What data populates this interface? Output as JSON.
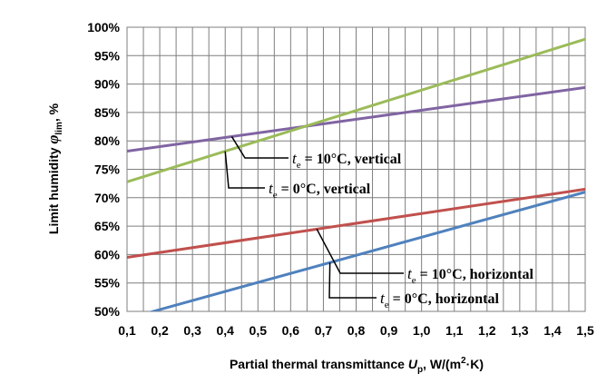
{
  "chart_data": {
    "type": "line",
    "xlabel": "Partial thermal transmittance U_p, W/(m²·K)",
    "xlabel_parts": {
      "prefix": "Partial thermal transmittance ",
      "symbol": "U",
      "symbol_sub": "p",
      "suffix_a": ", W/(m",
      "suffix_sup": "2",
      "suffix_b": "·K)"
    },
    "ylabel": "Limit humidity φ_lim, %",
    "ylabel_parts": {
      "prefix": "Limit humidity ",
      "symbol": "φ",
      "symbol_sub": "lim",
      "suffix": ", %"
    },
    "x_ticks": [
      "0,1",
      "0,2",
      "0,3",
      "0,4",
      "0,5",
      "0,6",
      "0,7",
      "0,8",
      "0,9",
      "1,0",
      "1,1",
      "1,2",
      "1,3",
      "1,4",
      "1,5"
    ],
    "y_ticks": [
      "50%",
      "55%",
      "60%",
      "65%",
      "70%",
      "75%",
      "80%",
      "85%",
      "90%",
      "95%",
      "100%"
    ],
    "xlim": [
      0.1,
      1.5
    ],
    "ylim": [
      50,
      100
    ],
    "grid": true,
    "legend": "none",
    "series": [
      {
        "name": "t_e = 10°C, vertical",
        "color": "#8064a2",
        "x": [
          0.1,
          1.5
        ],
        "y": [
          78.2,
          89.4
        ]
      },
      {
        "name": "t_e = 0°C, vertical",
        "color": "#9bbb59",
        "x": [
          0.1,
          1.5
        ],
        "y": [
          72.8,
          97.9
        ]
      },
      {
        "name": "t_e = 10°C, horizontal",
        "color": "#c0504d",
        "x": [
          0.1,
          1.5
        ],
        "y": [
          59.5,
          71.5
        ]
      },
      {
        "name": "t_e = 0°C, horizontal",
        "color": "#4f81bd",
        "x": [
          0.1,
          0.18,
          1.5
        ],
        "y": [
          48.5,
          50.0,
          71.0
        ]
      }
    ],
    "annotations": [
      {
        "var": "t",
        "sub": "e",
        "text": " = 10°C, vertical",
        "series": 0,
        "at_x": 0.42
      },
      {
        "var": "t",
        "sub": "e",
        "text": " = 0°C, vertical",
        "series": 1,
        "at_x": 0.4
      },
      {
        "var": "t",
        "sub": "e",
        "text": " = 10°C, horizontal",
        "series": 2,
        "at_x": 0.68
      },
      {
        "var": "t",
        "sub": "e",
        "text": " = 0°C, horizontal",
        "series": 3,
        "at_x": 0.72
      }
    ]
  }
}
